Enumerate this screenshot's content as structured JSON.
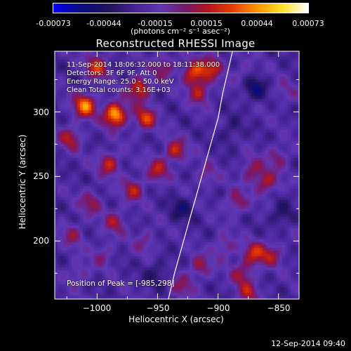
{
  "colorbar": {
    "ticks": [
      "-0.00073",
      "-0.00044",
      "-0.00015",
      "0.00015",
      "0.00044",
      "0.00073"
    ],
    "units": "(photons cm⁻² s⁻¹ asec⁻²)"
  },
  "title": "Reconstructed RHESSI Image",
  "info": {
    "line1": "11-Sep-2014 18:06:32.000 to 18:11:38.000",
    "line2": "Detectors: 3F 6F 9F, Att 0",
    "line3": "Energy Range: 25.0 - 50.0 keV",
    "line4": "Clean     Total counts: 3.16E+03"
  },
  "peak_label": "Position of Peak = [-985,298]",
  "timestamp": "12-Sep-2014 09:40",
  "chart_data": {
    "type": "heatmap",
    "title": "Reconstructed RHESSI Image",
    "xlabel": "Heliocentric X (arcsec)",
    "ylabel": "Heliocentric Y (arcsec)",
    "xlim": [
      -1035,
      -833
    ],
    "ylim": [
      155,
      347
    ],
    "x_ticks": [
      -1000,
      -950,
      -900,
      -850
    ],
    "x_tick_labels": [
      "−1000",
      "−950",
      "−900",
      "−850"
    ],
    "y_ticks": [
      200,
      250,
      300
    ],
    "y_tick_labels": [
      "200",
      "250",
      "300"
    ],
    "color_range": [
      -0.00073,
      0.00073
    ],
    "colormap": "blue-purple-red-yellow-white",
    "peak_position": [
      -985,
      298
    ],
    "limb_curve": {
      "x": [
        -941,
        -936,
        -930,
        -924,
        -918,
        -912,
        -906,
        -900,
        -896,
        -891,
        -888
      ],
      "y": [
        155,
        175,
        195,
        215,
        235,
        255,
        275,
        295,
        315,
        335,
        347
      ]
    },
    "hotspots": [
      {
        "x": -985,
        "y": 298,
        "v": 0.00073
      },
      {
        "x": -1010,
        "y": 305,
        "v": 0.0006
      },
      {
        "x": -965,
        "y": 318,
        "v": 0.0005
      },
      {
        "x": -1000,
        "y": 335,
        "v": 0.00045
      },
      {
        "x": -960,
        "y": 295,
        "v": 0.00045
      },
      {
        "x": -1022,
        "y": 280,
        "v": 0.00035
      },
      {
        "x": -990,
        "y": 260,
        "v": 0.0004
      },
      {
        "x": -970,
        "y": 240,
        "v": 0.00035
      },
      {
        "x": -1005,
        "y": 230,
        "v": 0.0003
      },
      {
        "x": -935,
        "y": 270,
        "v": 0.0004
      },
      {
        "x": -950,
        "y": 255,
        "v": 0.00035
      },
      {
        "x": -985,
        "y": 215,
        "v": 0.0003
      },
      {
        "x": -1020,
        "y": 205,
        "v": 0.00025
      },
      {
        "x": -960,
        "y": 200,
        "v": 0.0002
      },
      {
        "x": -920,
        "y": 330,
        "v": 0.0005
      },
      {
        "x": -905,
        "y": 335,
        "v": 0.0004
      },
      {
        "x": -945,
        "y": 335,
        "v": 0.0003
      },
      {
        "x": -915,
        "y": 315,
        "v": 0.00035
      },
      {
        "x": -872,
        "y": 255,
        "v": 0.0003
      },
      {
        "x": -860,
        "y": 245,
        "v": 0.00035
      },
      {
        "x": -850,
        "y": 265,
        "v": 0.00025
      },
      {
        "x": -885,
        "y": 230,
        "v": 0.0003
      },
      {
        "x": -870,
        "y": 190,
        "v": 0.0004
      },
      {
        "x": -880,
        "y": 175,
        "v": 0.0003
      },
      {
        "x": -855,
        "y": 190,
        "v": 0.0003
      },
      {
        "x": -915,
        "y": 180,
        "v": 0.0003
      },
      {
        "x": -895,
        "y": 195,
        "v": 0.00025
      },
      {
        "x": -875,
        "y": 160,
        "v": 0.0003
      },
      {
        "x": -910,
        "y": 250,
        "v": 0.0002
      },
      {
        "x": -930,
        "y": 165,
        "v": 0.00025
      },
      {
        "x": -1015,
        "y": 175,
        "v": 0.0002
      },
      {
        "x": -995,
        "y": 190,
        "v": 0.0002
      },
      {
        "x": -880,
        "y": 330,
        "v": 0.00015
      },
      {
        "x": -845,
        "y": 315,
        "v": 0.00015
      }
    ],
    "coldspots": [
      {
        "x": -870,
        "y": 318,
        "v": -0.0003
      },
      {
        "x": -930,
        "y": 225,
        "v": -0.00022
      },
      {
        "x": -950,
        "y": 175,
        "v": -0.00018
      },
      {
        "x": -848,
        "y": 220,
        "v": -0.0002
      },
      {
        "x": -890,
        "y": 285,
        "v": -0.00015
      }
    ]
  }
}
